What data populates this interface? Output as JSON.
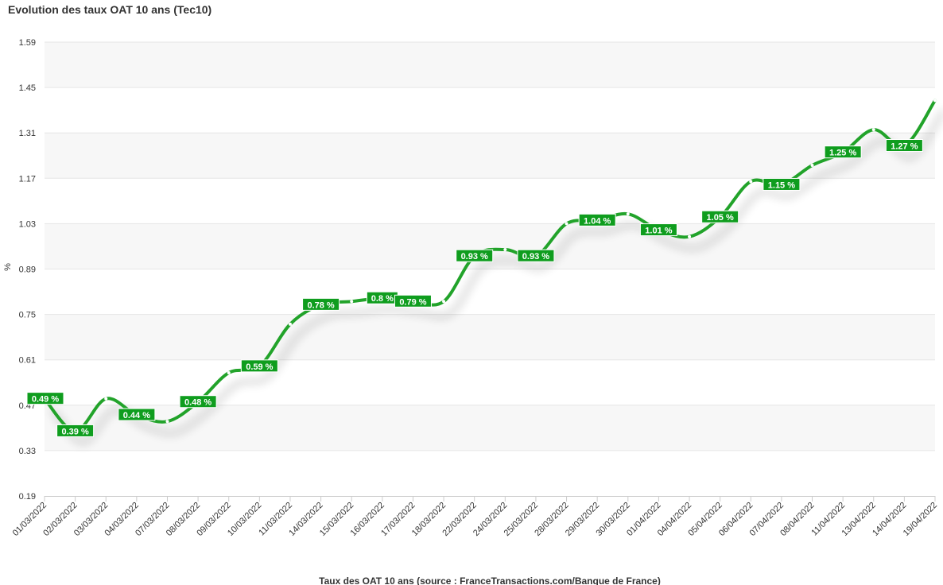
{
  "chart_data": {
    "type": "line",
    "title": "Evolution des taux OAT 10 ans (Tec10)",
    "xlabel": "Taux des OAT 10 ans (source : FranceTransactions.com/Banque de France)",
    "ylabel": "%",
    "ylim": [
      0.19,
      1.59
    ],
    "yticks": [
      "0.19",
      "0.33",
      "0.47",
      "0.61",
      "0.75",
      "0.89",
      "1.03",
      "1.17",
      "1.31",
      "1.45",
      "1.59"
    ],
    "grid": true,
    "legend": "none",
    "categories": [
      "01/03/2022",
      "02/03/2022",
      "03/03/2022",
      "04/03/2022",
      "07/03/2022",
      "08/03/2022",
      "09/03/2022",
      "10/03/2022",
      "11/03/2022",
      "14/03/2022",
      "15/03/2022",
      "16/03/2022",
      "17/03/2022",
      "18/03/2022",
      "22/03/2022",
      "24/03/2022",
      "25/03/2022",
      "28/03/2022",
      "29/03/2022",
      "30/03/2022",
      "01/04/2022",
      "04/04/2022",
      "05/04/2022",
      "06/04/2022",
      "07/04/2022",
      "08/04/2022",
      "11/04/2022",
      "13/04/2022",
      "14/04/2022",
      "19/04/2022"
    ],
    "values": [
      0.49,
      0.39,
      0.49,
      0.44,
      0.42,
      0.48,
      0.57,
      0.59,
      0.72,
      0.78,
      0.79,
      0.8,
      0.79,
      0.79,
      0.93,
      0.95,
      0.93,
      1.03,
      1.04,
      1.06,
      1.01,
      0.99,
      1.05,
      1.16,
      1.15,
      1.21,
      1.25,
      1.32,
      1.27,
      1.41
    ],
    "labels": [
      "0.49 %",
      "0.39 %",
      "",
      "0.44 %",
      "",
      "0.48 %",
      "",
      "0.59 %",
      "",
      "0.78 %",
      "",
      "0.8 %",
      "0.79 %",
      "",
      "0.93 %",
      "",
      "0.93 %",
      "",
      "1.04 %",
      "",
      "1.01 %",
      "",
      "1.05 %",
      "",
      "1.15 %",
      "",
      "1.25 %",
      "",
      "1.27 %",
      ""
    ],
    "colors": {
      "line": "#21a32c",
      "label_bg": "#0f9d1e",
      "band": "#f7f7f7",
      "grid": "#e6e6e6"
    }
  }
}
